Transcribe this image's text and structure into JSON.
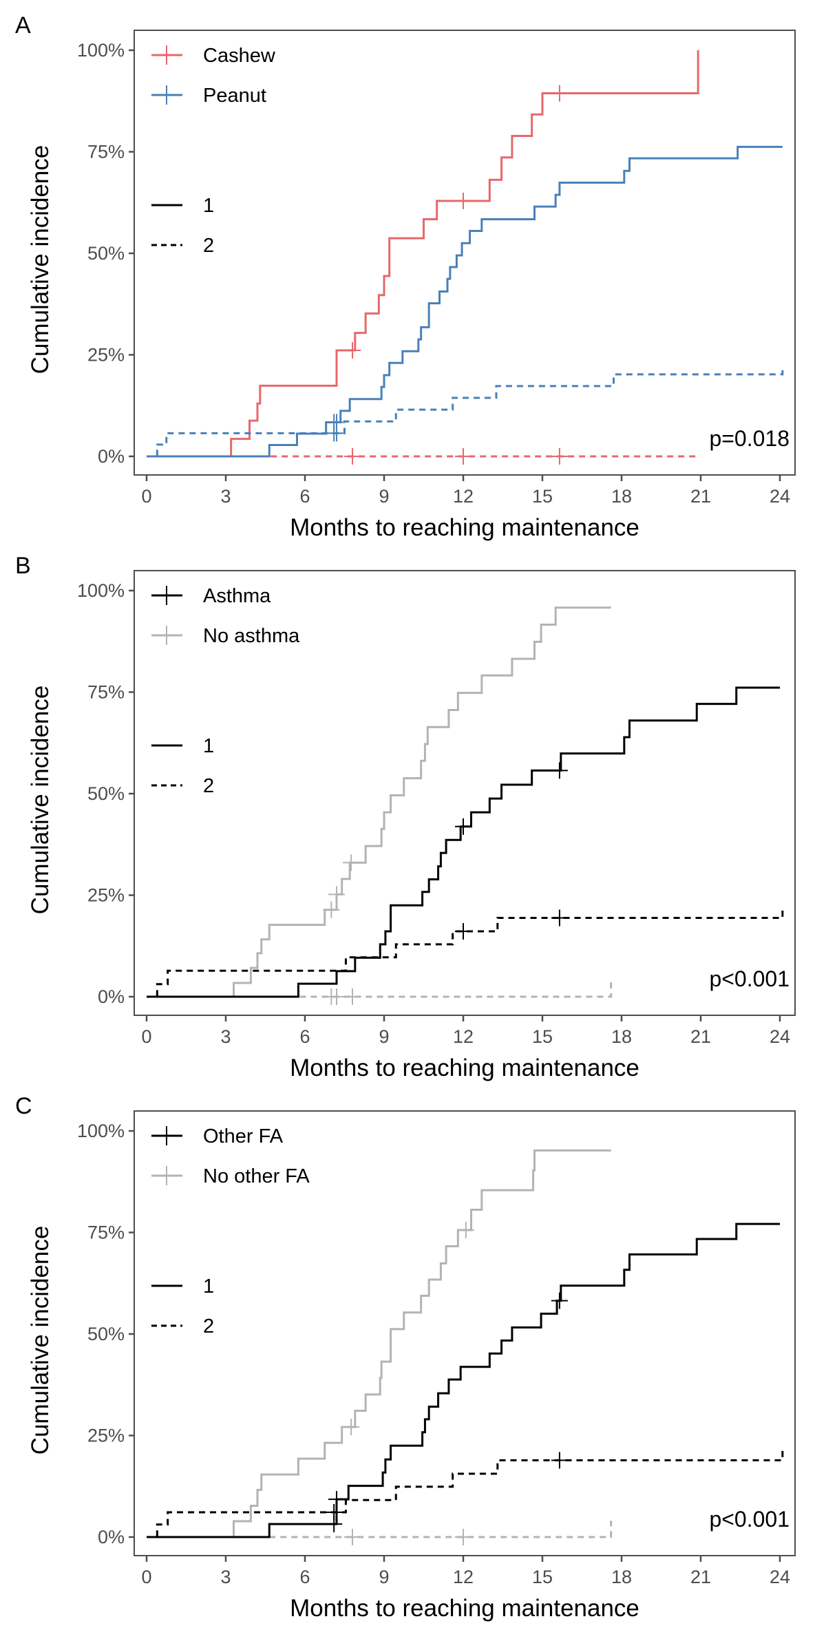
{
  "chart_data": [
    {
      "type": "line",
      "subtype": "cumulative-incidence-step",
      "panel": "A",
      "xlabel": "Months to reaching maintenance",
      "ylabel": "Cumulative incidence",
      "xlim": [
        0,
        24
      ],
      "ylim": [
        0,
        100
      ],
      "xticks": [
        0,
        3,
        6,
        9,
        12,
        15,
        18,
        21,
        24
      ],
      "xtick_labels": [
        "0",
        "3",
        "6",
        "9",
        "12",
        "15",
        "18",
        "21",
        "24"
      ],
      "yticks": [
        0,
        25,
        50,
        75,
        100
      ],
      "ytick_labels": [
        "0%",
        "25%",
        "50%",
        "75%",
        "100%"
      ],
      "grid": false,
      "legend": {
        "placement": "top-left",
        "groups": [
          {
            "label": "Cashew",
            "color": "#E8676B"
          },
          {
            "label": "Peanut",
            "color": "#4A80B8"
          }
        ],
        "events": [
          {
            "label": "1",
            "linetype": "solid"
          },
          {
            "label": "2",
            "linetype": "dashed"
          }
        ]
      },
      "annotation": "p=0.018",
      "series": [
        {
          "name": "Cashew",
          "event": "1",
          "color": "#E8676B",
          "linetype": "solid",
          "x": [
            0,
            3.2,
            3.9,
            4.2,
            4.3,
            7.2,
            7.9,
            8.3,
            8.8,
            9.0,
            9.2,
            10.5,
            11.0,
            13.0,
            13.45,
            13.85,
            14.6,
            15.0,
            20.9
          ],
          "y": [
            0,
            4.3,
            8.8,
            13.0,
            17.4,
            26.1,
            30.4,
            35.2,
            39.7,
            44.4,
            53.7,
            58.4,
            62.9,
            68.1,
            73.6,
            78.9,
            84.2,
            89.4,
            100
          ],
          "x_end": 20.9,
          "censored": [
            7.8,
            12.0,
            15.65
          ]
        },
        {
          "name": "Cashew",
          "event": "2",
          "color": "#E8676B",
          "linetype": "dashed",
          "x": [
            4.7
          ],
          "y": [
            0
          ],
          "x_end": 20.9,
          "censored": [
            7.8,
            12.0,
            15.65
          ]
        },
        {
          "name": "Peanut",
          "event": "1",
          "color": "#4A80B8",
          "linetype": "solid",
          "x": [
            0,
            4.65,
            5.7,
            6.8,
            7.35,
            7.7,
            8.9,
            9.0,
            9.2,
            9.7,
            10.3,
            10.4,
            10.7,
            11.1,
            11.4,
            11.5,
            11.75,
            11.95,
            12.25,
            12.7,
            14.7,
            15.5,
            15.65,
            18.1,
            18.3,
            22.4
          ],
          "y": [
            0,
            2.8,
            5.6,
            8.4,
            11.2,
            14.1,
            17.1,
            20.0,
            23.0,
            25.9,
            28.8,
            31.8,
            37.7,
            40.6,
            43.7,
            46.6,
            49.5,
            52.5,
            55.5,
            58.4,
            61.5,
            64.4,
            67.4,
            70.3,
            73.4,
            76.2
          ],
          "x_end": 24.1,
          "censored": [
            7.1,
            7.2
          ]
        },
        {
          "name": "Peanut",
          "event": "2",
          "color": "#4A80B8",
          "linetype": "dashed",
          "x": [
            0,
            0.4,
            0.75,
            7.5,
            9.45,
            11.6,
            13.25,
            17.7,
            24.1
          ],
          "y": [
            0,
            2.9,
            5.7,
            8.6,
            11.5,
            14.4,
            17.3,
            20.2,
            22.0
          ],
          "x_end": 24.1,
          "censored": [
            7.1,
            7.2
          ]
        }
      ]
    },
    {
      "type": "line",
      "subtype": "cumulative-incidence-step",
      "panel": "B",
      "xlabel": "Months to reaching maintenance",
      "ylabel": "Cumulative incidence",
      "xlim": [
        0,
        24
      ],
      "ylim": [
        0,
        100
      ],
      "xticks": [
        0,
        3,
        6,
        9,
        12,
        15,
        18,
        21,
        24
      ],
      "xtick_labels": [
        "0",
        "3",
        "6",
        "9",
        "12",
        "15",
        "18",
        "21",
        "24"
      ],
      "yticks": [
        0,
        25,
        50,
        75,
        100
      ],
      "ytick_labels": [
        "0%",
        "25%",
        "50%",
        "75%",
        "100%"
      ],
      "grid": false,
      "legend": {
        "placement": "top-left",
        "groups": [
          {
            "label": "Asthma",
            "color": "#000000"
          },
          {
            "label": "No asthma",
            "color": "#B3B3B3"
          }
        ],
        "events": [
          {
            "label": "1",
            "linetype": "solid"
          },
          {
            "label": "2",
            "linetype": "dashed"
          }
        ]
      },
      "annotation": "p<0.001",
      "series": [
        {
          "name": "No asthma",
          "event": "1",
          "color": "#B3B3B3",
          "linetype": "solid",
          "x": [
            0,
            3.3,
            3.95,
            4.2,
            4.35,
            4.65,
            6.75,
            7.2,
            7.4,
            7.7,
            8.3,
            8.9,
            9.0,
            9.25,
            9.75,
            10.4,
            10.55,
            10.65,
            11.45,
            11.8,
            12.7,
            13.85,
            14.7,
            14.95,
            15.5
          ],
          "y": [
            0,
            3.4,
            7.1,
            10.7,
            14.1,
            17.7,
            21.4,
            25.2,
            29.0,
            33.0,
            37.1,
            41.3,
            45.4,
            49.6,
            53.8,
            58.1,
            62.2,
            66.4,
            70.6,
            74.8,
            79.1,
            83.2,
            87.4,
            91.6,
            95.8
          ],
          "x_end": 17.6,
          "censored": [
            7.0,
            7.2,
            7.75
          ]
        },
        {
          "name": "No asthma",
          "event": "2",
          "color": "#B3B3B3",
          "linetype": "dashed",
          "x": [
            3.3,
            17.6
          ],
          "y": [
            0,
            4.0
          ],
          "x_end": 17.6,
          "censored": [
            7.0,
            7.2,
            7.8
          ]
        },
        {
          "name": "Asthma",
          "event": "1",
          "color": "#000000",
          "linetype": "solid",
          "x": [
            0,
            5.75,
            7.2,
            7.9,
            8.85,
            9.05,
            9.25,
            10.45,
            10.7,
            11.05,
            11.15,
            11.35,
            11.9,
            12.3,
            13.0,
            13.45,
            14.6,
            15.7,
            18.1,
            18.3,
            20.85,
            22.35
          ],
          "y": [
            0,
            3.2,
            6.3,
            9.6,
            12.9,
            16.1,
            22.5,
            25.8,
            28.9,
            32.1,
            35.4,
            38.6,
            41.9,
            45.4,
            48.8,
            52.2,
            55.7,
            59.9,
            63.9,
            68.0,
            72.1,
            76.1
          ],
          "x_end": 24.0,
          "censored": [
            12.0,
            15.65
          ]
        },
        {
          "name": "Asthma",
          "event": "2",
          "color": "#000000",
          "linetype": "dashed",
          "x": [
            0,
            0.4,
            0.8,
            7.55,
            9.45,
            11.6,
            13.3,
            24.1
          ],
          "y": [
            0,
            3.1,
            6.4,
            9.7,
            12.9,
            16.1,
            19.4,
            22.0
          ],
          "x_end": 24.1,
          "censored": [
            12.0,
            15.65
          ]
        }
      ]
    },
    {
      "type": "line",
      "subtype": "cumulative-incidence-step",
      "panel": "C",
      "xlabel": "Months to reaching maintenance",
      "ylabel": "Cumulative incidence",
      "xlim": [
        0,
        24
      ],
      "ylim": [
        0,
        100
      ],
      "xticks": [
        0,
        3,
        6,
        9,
        12,
        15,
        18,
        21,
        24
      ],
      "xtick_labels": [
        "0",
        "3",
        "6",
        "9",
        "12",
        "15",
        "18",
        "21",
        "24"
      ],
      "yticks": [
        0,
        25,
        50,
        75,
        100
      ],
      "ytick_labels": [
        "0%",
        "25%",
        "50%",
        "75%",
        "100%"
      ],
      "grid": false,
      "legend": {
        "placement": "top-left",
        "groups": [
          {
            "label": "Other FA",
            "color": "#000000"
          },
          {
            "label": "No other FA",
            "color": "#B3B3B3"
          }
        ],
        "events": [
          {
            "label": "1",
            "linetype": "solid"
          },
          {
            "label": "2",
            "linetype": "dashed"
          }
        ]
      },
      "annotation": "p<0.001",
      "series": [
        {
          "name": "No other FA",
          "event": "1",
          "color": "#B3B3B3",
          "linetype": "solid",
          "x": [
            0,
            3.3,
            3.95,
            4.2,
            4.35,
            5.75,
            6.75,
            7.4,
            7.9,
            8.3,
            8.85,
            8.9,
            9.25,
            9.75,
            10.4,
            10.7,
            11.15,
            11.35,
            11.8,
            12.3,
            12.7,
            14.65,
            14.7
          ],
          "y": [
            0,
            3.9,
            7.7,
            11.6,
            15.4,
            19.3,
            23.2,
            27.1,
            31.1,
            35.1,
            39.2,
            43.2,
            51.2,
            55.3,
            59.4,
            63.4,
            67.4,
            71.6,
            75.6,
            80.6,
            85.4,
            90.3,
            95.2
          ],
          "x_end": 17.6,
          "censored": [
            7.75,
            12.1
          ]
        },
        {
          "name": "No other FA",
          "event": "2",
          "color": "#B3B3B3",
          "linetype": "dashed",
          "x": [
            4.65,
            17.6
          ],
          "y": [
            0,
            4.0
          ],
          "x_end": 17.6,
          "censored": [
            7.8,
            12.0
          ]
        },
        {
          "name": "Other FA",
          "event": "1",
          "color": "#000000",
          "linetype": "solid",
          "x": [
            0,
            4.65,
            7.2,
            7.65,
            8.95,
            9.05,
            9.25,
            10.45,
            10.55,
            10.7,
            11.05,
            11.45,
            11.9,
            13.0,
            13.45,
            13.85,
            14.95,
            15.55,
            15.7,
            18.1,
            18.3,
            20.85,
            22.35
          ],
          "y": [
            0,
            3.2,
            9.3,
            12.6,
            15.9,
            19.1,
            22.5,
            25.8,
            29.0,
            32.1,
            35.4,
            38.8,
            41.9,
            45.2,
            48.4,
            51.6,
            55.0,
            58.2,
            61.9,
            65.8,
            69.6,
            73.4,
            77.1
          ],
          "x_end": 24.0,
          "censored": [
            7.1,
            7.2,
            15.65
          ]
        },
        {
          "name": "Other FA",
          "event": "2",
          "color": "#000000",
          "linetype": "dashed",
          "x": [
            0,
            0.4,
            0.8,
            7.55,
            9.45,
            11.6,
            13.3,
            24.1
          ],
          "y": [
            0,
            3.1,
            6.1,
            9.1,
            12.4,
            15.6,
            18.9,
            22.0
          ],
          "x_end": 24.1,
          "censored": [
            7.1,
            15.65
          ]
        }
      ]
    }
  ],
  "panels": [
    {
      "letter": "A",
      "ylabel": "Cumulative incidence",
      "xlabel": "Months to reaching maintenance",
      "pval": "p=0.018",
      "legend_groups": [
        "Cashew",
        "Peanut"
      ],
      "legend_events": [
        "1",
        "2"
      ]
    },
    {
      "letter": "B",
      "ylabel": "Cumulative incidence",
      "xlabel": "Months to reaching maintenance",
      "pval": "p<0.001",
      "legend_groups": [
        "Asthma",
        "No asthma"
      ],
      "legend_events": [
        "1",
        "2"
      ]
    },
    {
      "letter": "C",
      "ylabel": "Cumulative incidence",
      "xlabel": "Months to reaching maintenance",
      "pval": "p<0.001",
      "legend_groups": [
        "Other FA",
        "No other FA"
      ],
      "legend_events": [
        "1",
        "2"
      ]
    }
  ]
}
